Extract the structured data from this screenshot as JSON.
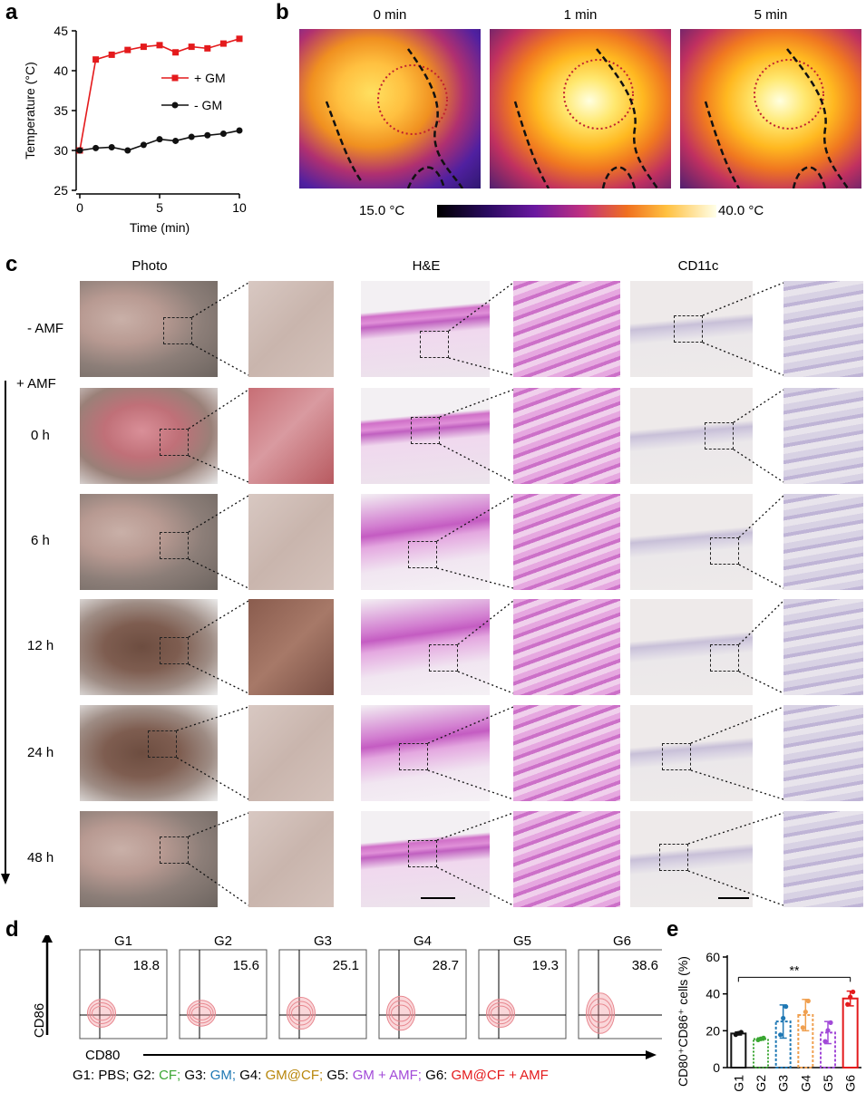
{
  "panel_labels": {
    "a": "a",
    "b": "b",
    "c": "c",
    "d": "d",
    "e": "e"
  },
  "panel_a": {
    "chart_data": {
      "type": "line",
      "xlabel": "Time (min)",
      "ylabel": "Temperature (°C)",
      "xlim": [
        0,
        10
      ],
      "ylim": [
        25,
        45
      ],
      "xticks": [
        "0",
        "5",
        "10"
      ],
      "yticks": [
        "25",
        "30",
        "35",
        "40",
        "45"
      ],
      "series": [
        {
          "name": "+ GM",
          "color": "#e41a1c",
          "marker": "square",
          "x": [
            0,
            1,
            2,
            3,
            4,
            5,
            6,
            7,
            8,
            9,
            10
          ],
          "y": [
            30.0,
            41.4,
            42.0,
            42.6,
            43.0,
            43.2,
            42.3,
            43.0,
            42.8,
            43.4,
            44.0
          ]
        },
        {
          "name": "- GM",
          "color": "#111111",
          "marker": "circle",
          "x": [
            0,
            1,
            2,
            3,
            4,
            5,
            6,
            7,
            8,
            9,
            10
          ],
          "y": [
            30.0,
            30.3,
            30.4,
            30.0,
            30.7,
            31.4,
            31.2,
            31.7,
            31.9,
            32.1,
            32.5
          ]
        }
      ]
    }
  },
  "panel_b": {
    "times": [
      "0 min",
      "1 min",
      "5 min"
    ],
    "scale_min": "15.0 °C",
    "scale_max": "40.0 °C"
  },
  "panel_c": {
    "columns": [
      "Photo",
      "H&E",
      "CD11c"
    ],
    "rows": [
      "- AMF",
      "0 h",
      "6 h",
      "12 h",
      "24 h",
      "48 h"
    ],
    "amf_label": "+ AMF"
  },
  "panel_d": {
    "xlabel": "CD80",
    "ylabel": "CD86",
    "groups": [
      {
        "name": "G1",
        "value": "18.8"
      },
      {
        "name": "G2",
        "value": "15.6"
      },
      {
        "name": "G3",
        "value": "25.1"
      },
      {
        "name": "G4",
        "value": "28.7"
      },
      {
        "name": "G5",
        "value": "19.3"
      },
      {
        "name": "G6",
        "value": "38.6"
      }
    ],
    "legend": [
      {
        "text": "G1: PBS;",
        "color": "#000000"
      },
      {
        "text": "G2:",
        "color": "#000000"
      },
      {
        "text": "CF;",
        "color": "#3aa632"
      },
      {
        "text": "G3:",
        "color": "#000000"
      },
      {
        "text": "GM;",
        "color": "#1f78b4"
      },
      {
        "text": "G4:",
        "color": "#000000"
      },
      {
        "text": "GM@CF;",
        "color": "#b8860b"
      },
      {
        "text": "G5:",
        "color": "#000000"
      },
      {
        "text": "GM + AMF;",
        "color": "#a24ad8"
      },
      {
        "text": "G6:",
        "color": "#000000"
      },
      {
        "text": "GM@CF + AMF",
        "color": "#e41a1c"
      }
    ]
  },
  "panel_e": {
    "chart_data": {
      "type": "bar",
      "ylabel": "CD80⁺CD86⁺ cells (%)",
      "categories": [
        "G1",
        "G2",
        "G3",
        "G4",
        "G5",
        "G6"
      ],
      "values": [
        18.5,
        15.5,
        25.0,
        28.5,
        19.0,
        37.5
      ],
      "errors": [
        0.8,
        0.6,
        9.0,
        8.5,
        6.0,
        4.0
      ],
      "colors": [
        "#111111",
        "#3aa632",
        "#1f78b4",
        "#f0a050",
        "#a24ad8",
        "#e41a1c"
      ],
      "ylim": [
        0,
        60
      ],
      "yticks": [
        "0",
        "20",
        "40",
        "60"
      ],
      "significance": "**"
    }
  }
}
